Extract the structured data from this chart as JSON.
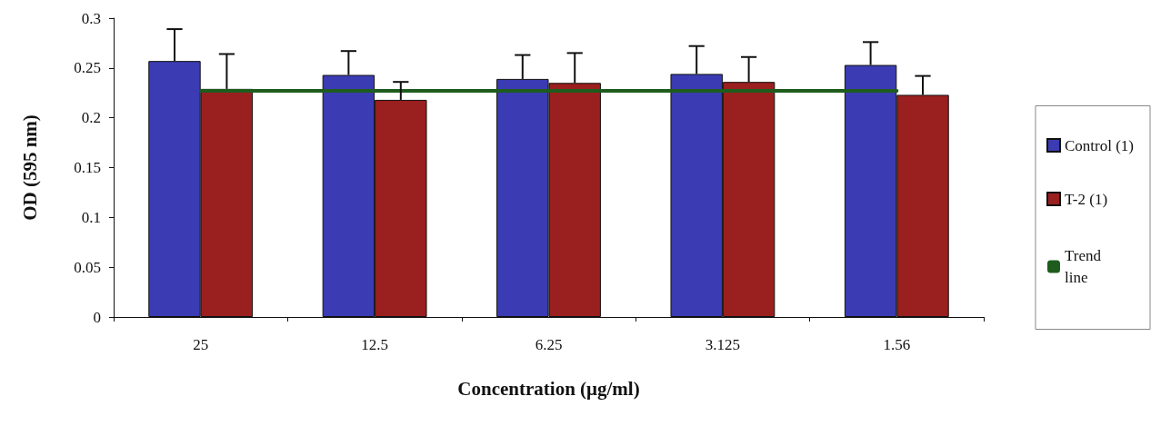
{
  "chart_data": {
    "type": "bar",
    "xlabel": "Concentration (μg/ml)",
    "ylabel": "OD (595 nm)",
    "categories": [
      "25",
      "12.5",
      "6.25",
      "3.125",
      "1.56"
    ],
    "series": [
      {
        "name": "Control (1)",
        "color": "#3b3bb3",
        "values": [
          0.257,
          0.243,
          0.239,
          0.244,
          0.253
        ],
        "errors": [
          [
            0.257,
            0.289
          ],
          [
            0.243,
            0.267
          ],
          [
            0.239,
            0.263
          ],
          [
            0.244,
            0.272
          ],
          [
            0.253,
            0.276
          ]
        ]
      },
      {
        "name": "T-2 (1)",
        "color": "#9a1f1f",
        "values": [
          0.229,
          0.218,
          0.235,
          0.236,
          0.223
        ],
        "errors": [
          [
            0.229,
            0.264
          ],
          [
            0.218,
            0.236
          ],
          [
            0.235,
            0.265
          ],
          [
            0.236,
            0.261
          ],
          [
            0.223,
            0.242
          ]
        ]
      },
      {
        "name": "Trend line",
        "type": "line",
        "color": "#1e5c1e",
        "values": [
          0.227,
          0.227,
          0.227,
          0.227,
          0.227
        ],
        "marker": "none"
      }
    ],
    "ylim": [
      0,
      0.3
    ],
    "yticks": [
      0,
      0.05,
      0.1,
      0.15,
      0.2,
      0.25,
      0.3
    ],
    "grid": false,
    "legend": "right"
  }
}
